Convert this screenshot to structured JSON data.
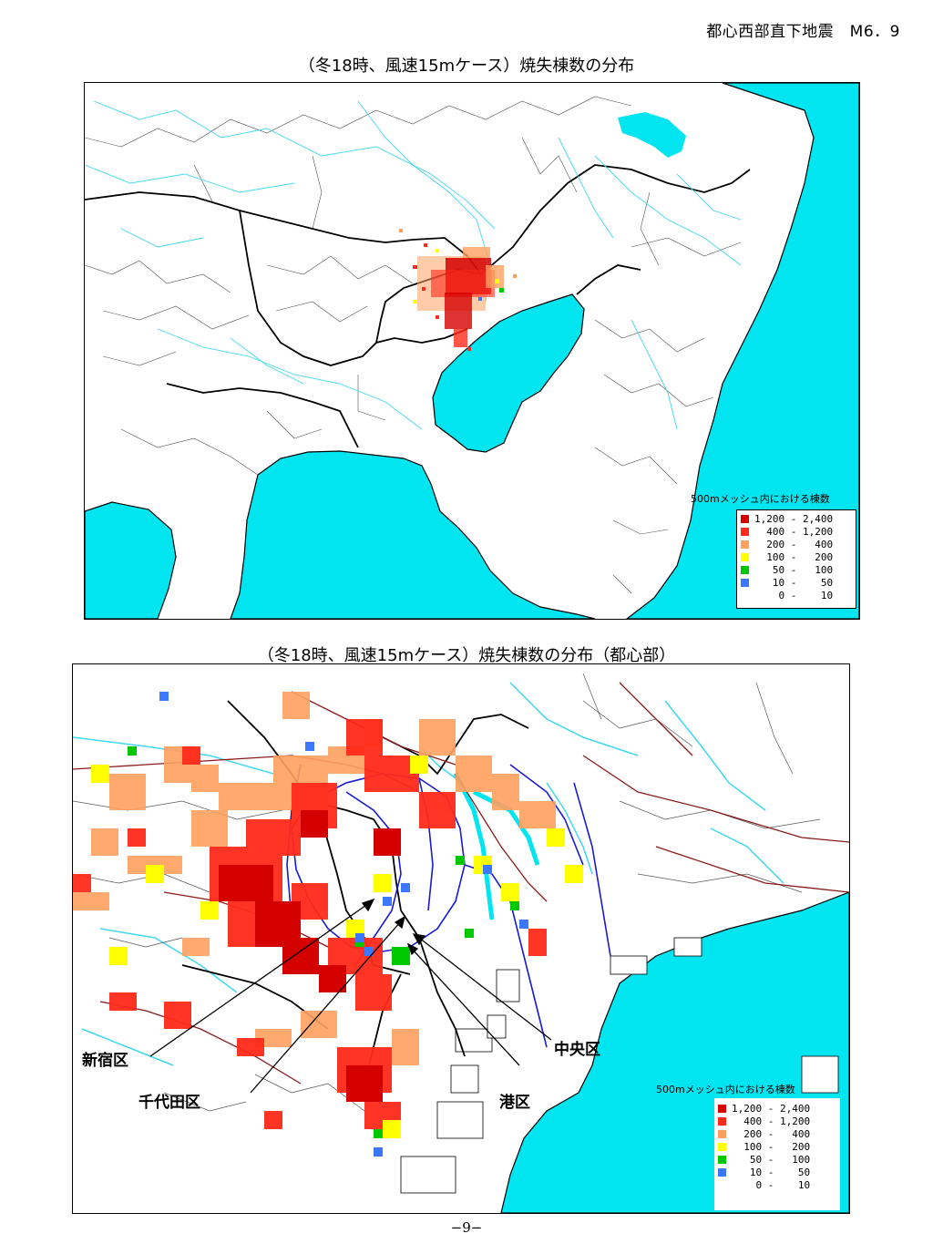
{
  "header": "都心西部直下地震　M6．9",
  "map1": {
    "title": "（冬18時、風速15mケース）焼失棟数の分布"
  },
  "map2": {
    "title": "（冬18時、風速15mケース）焼失棟数の分布（都心部）"
  },
  "legend": {
    "title": "500mメッシュ内における棟数",
    "items": [
      {
        "label": "1,200 - 2,400",
        "color": "#d40000"
      },
      {
        "label": "  400 - 1,200",
        "color": "#ff2a1a"
      },
      {
        "label": "  200 -   400",
        "color": "#ffa060"
      },
      {
        "label": "  100 -   200",
        "color": "#ffff00"
      },
      {
        "label": "   50 -   100",
        "color": "#00c800"
      },
      {
        "label": "   10 -    50",
        "color": "#3c78ff"
      },
      {
        "label": "    0 -    10",
        "color": "#ffffff"
      }
    ]
  },
  "ward_labels": {
    "shinjuku": "新宿区",
    "chiyoda": "千代田区",
    "chuo": "中央区",
    "minato": "港区"
  },
  "colors": {
    "sea": "#00e5f0",
    "river": "#40d8f0",
    "boundary": "#333333",
    "railway": "#8b1a1a",
    "road": "#1a1ad0"
  },
  "page_number": "−9−"
}
